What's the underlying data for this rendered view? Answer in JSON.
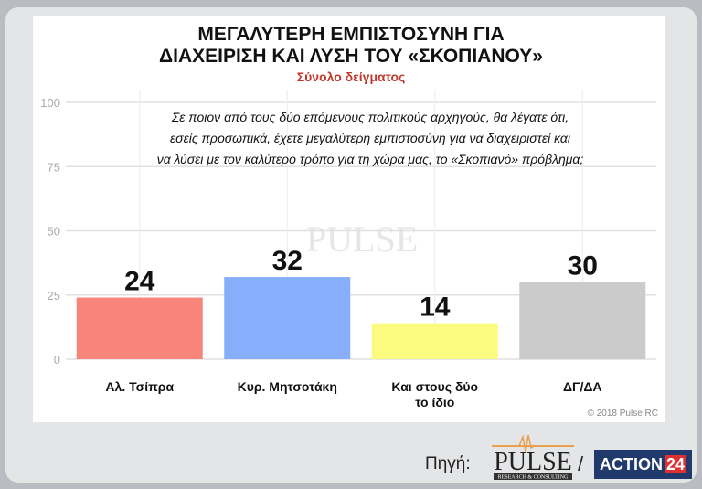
{
  "chart_data": {
    "type": "bar",
    "title": "ΜΕΓΑΛΥΤΕΡΗ ΕΜΠΙΣΤΟΣΥΝΗ ΓΙΑ ΔΙΑΧΕΙΡΙΣΗ ΚΑΙ ΛΥΣΗ ΤΟΥ «ΣΚΟΠΙΑΝΟΥ»",
    "title_lines": [
      "ΜΕΓΑΛΥΤΕΡΗ ΕΜΠΙΣΤΟΣΥΝΗ ΓΙΑ",
      "ΔΙΑΧΕΙΡΙΣΗ ΚΑΙ ΛΥΣΗ ΤΟΥ «ΣΚΟΠΙΑΝΟΥ»"
    ],
    "subtitle": "Σύνολο δείγματος",
    "question_lines": [
      "Σε ποιον από τους δύο επόμενους πολιτικούς αρχηγούς, θα λέγατε ότι,",
      "εσείς προσωπικά, έχετε μεγαλύτερη εμπιστοσύνη για να διαχειριστεί και",
      "να λύσει με τον καλύτερο τρόπο για τη χώρα μας, το «Σκοπιανό» πρόβλημα;"
    ],
    "categories": [
      [
        "Αλ. Τσίπρα"
      ],
      [
        "Κυρ. Μητσοτάκη"
      ],
      [
        "Και στους δύο",
        "το ίδιο"
      ],
      [
        "ΔΓ/ΔΑ"
      ]
    ],
    "values": [
      24,
      32,
      14,
      30
    ],
    "colors": [
      "#f8857a",
      "#86aefb",
      "#fbfb7f",
      "#cbcbcb"
    ],
    "ylim": [
      0,
      100
    ],
    "yticks": [
      0,
      25,
      50,
      75,
      100
    ],
    "grid": true,
    "watermark": "PULSE RESEARCH & CONSULTING"
  },
  "footer": {
    "copyright": "© 2018 Pulse RC",
    "source_label": "Πηγή:",
    "pulse_logo": "PULSE RESEARCH & CONSULTING",
    "separator": "/",
    "action_logo": "ACTION",
    "action_number": "24"
  }
}
